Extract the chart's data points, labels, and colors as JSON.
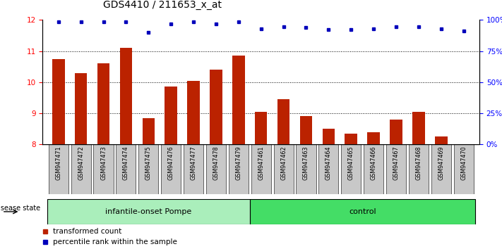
{
  "title": "GDS4410 / 211653_x_at",
  "samples": [
    "GSM947471",
    "GSM947472",
    "GSM947473",
    "GSM947474",
    "GSM947475",
    "GSM947476",
    "GSM947477",
    "GSM947478",
    "GSM947479",
    "GSM947461",
    "GSM947462",
    "GSM947463",
    "GSM947464",
    "GSM947465",
    "GSM947466",
    "GSM947467",
    "GSM947468",
    "GSM947469",
    "GSM947470"
  ],
  "bar_values": [
    10.75,
    10.3,
    10.6,
    11.1,
    8.85,
    9.85,
    10.05,
    10.4,
    10.85,
    9.05,
    9.45,
    8.9,
    8.5,
    8.35,
    8.4,
    8.8,
    9.05,
    8.25,
    8.0
  ],
  "dot_y_left": [
    11.93,
    11.93,
    11.93,
    11.93,
    11.6,
    11.88,
    11.93,
    11.88,
    11.93,
    11.72,
    11.79,
    11.75,
    11.68,
    11.69,
    11.72,
    11.77,
    11.77,
    11.71,
    11.65
  ],
  "group1_label": "infantile-onset Pompe",
  "group2_label": "control",
  "group1_count": 9,
  "group2_count": 10,
  "disease_state_label": "disease state",
  "ylim_left": [
    8,
    12
  ],
  "ylim_right": [
    0,
    100
  ],
  "yticks_left": [
    8,
    9,
    10,
    11,
    12
  ],
  "yticks_right": [
    0,
    25,
    50,
    75,
    100
  ],
  "ytick_labels_right": [
    "0%",
    "25%",
    "50%",
    "75%",
    "100%"
  ],
  "bar_color": "#BB2200",
  "dot_color": "#0000BB",
  "group1_bg": "#AAEEBB",
  "group2_bg": "#44DD66",
  "tick_bg": "#C8C8C8",
  "legend_bar_label": "transformed count",
  "legend_dot_label": "percentile rank within the sample",
  "title_fontsize": 10,
  "tick_fontsize": 7.5,
  "label_fontsize": 5.8
}
